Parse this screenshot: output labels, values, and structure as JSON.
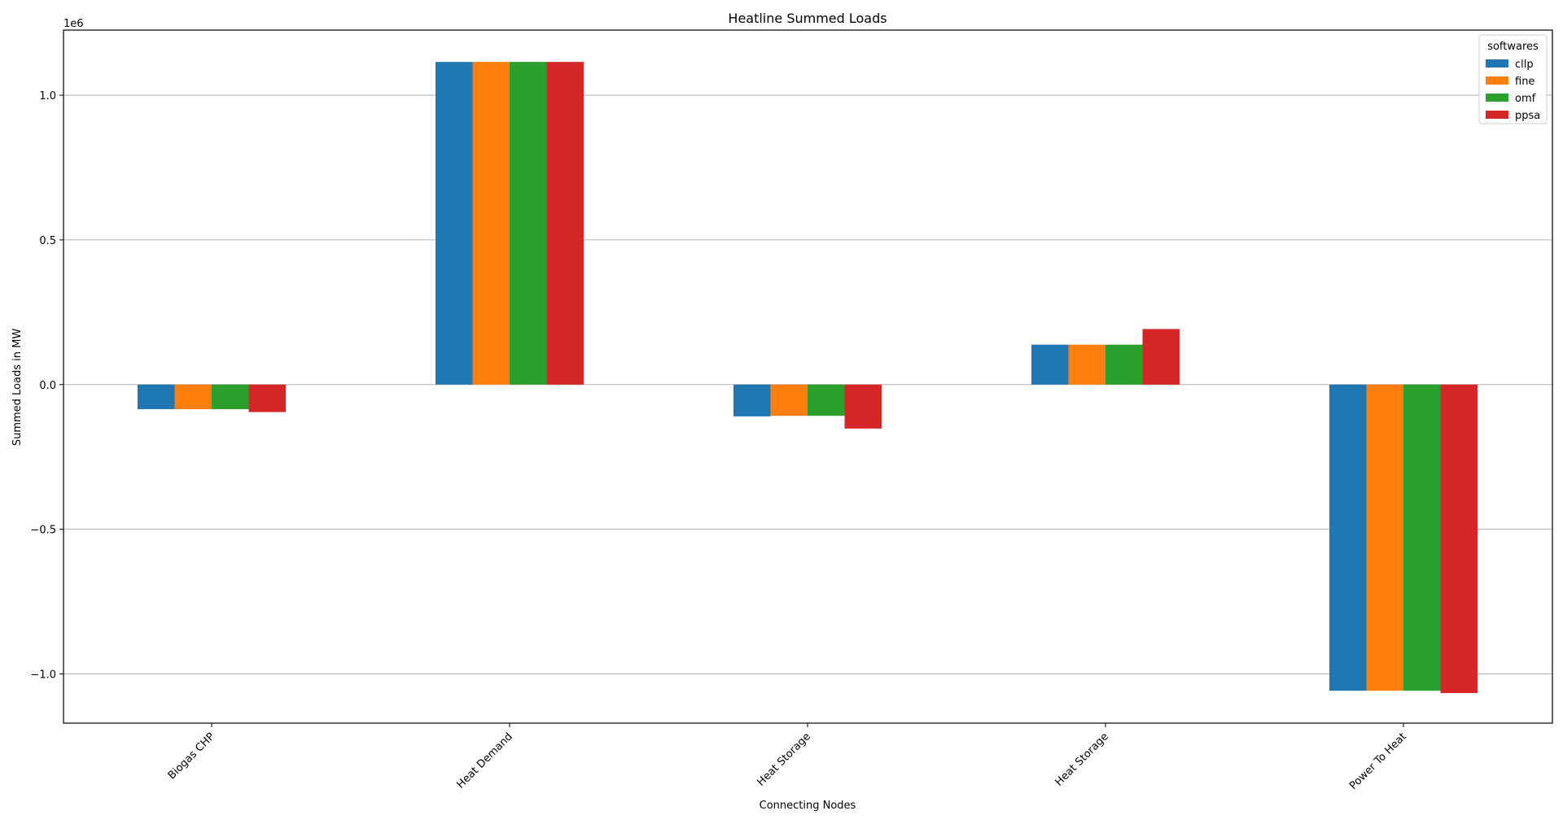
{
  "chart_data": {
    "type": "bar",
    "title": "Heatline Summed Loads",
    "xlabel": "Connecting Nodes",
    "ylabel": "Summed Loads in MW",
    "y_offset_text": "1e6",
    "y_scale_factor": 1000000,
    "ylim": [
      -1170000,
      1225000
    ],
    "yticks": [
      -1000000,
      -500000,
      0,
      500000,
      1000000
    ],
    "ytick_labels": [
      "−1.0",
      "−0.5",
      "0.0",
      "0.5",
      "1.0"
    ],
    "grid": "y",
    "categories": [
      "Biogas CHP",
      "Heat Demand",
      "Heat Storage",
      "Heat Storage",
      "Power To Heat"
    ],
    "series": [
      {
        "name": "cllp",
        "color": "#1f77b4",
        "values": [
          -85000,
          1115000,
          -110000,
          138000,
          -1058000
        ]
      },
      {
        "name": "fine",
        "color": "#ff7f0e",
        "values": [
          -85000,
          1115000,
          -108000,
          138000,
          -1058000
        ]
      },
      {
        "name": "omf",
        "color": "#2ca02c",
        "values": [
          -85000,
          1115000,
          -108000,
          138000,
          -1058000
        ]
      },
      {
        "name": "ppsa",
        "color": "#d62728",
        "values": [
          -95000,
          1115000,
          -152000,
          192000,
          -1066000
        ]
      }
    ],
    "legend": {
      "title": "softwares",
      "position": "top-right"
    }
  }
}
